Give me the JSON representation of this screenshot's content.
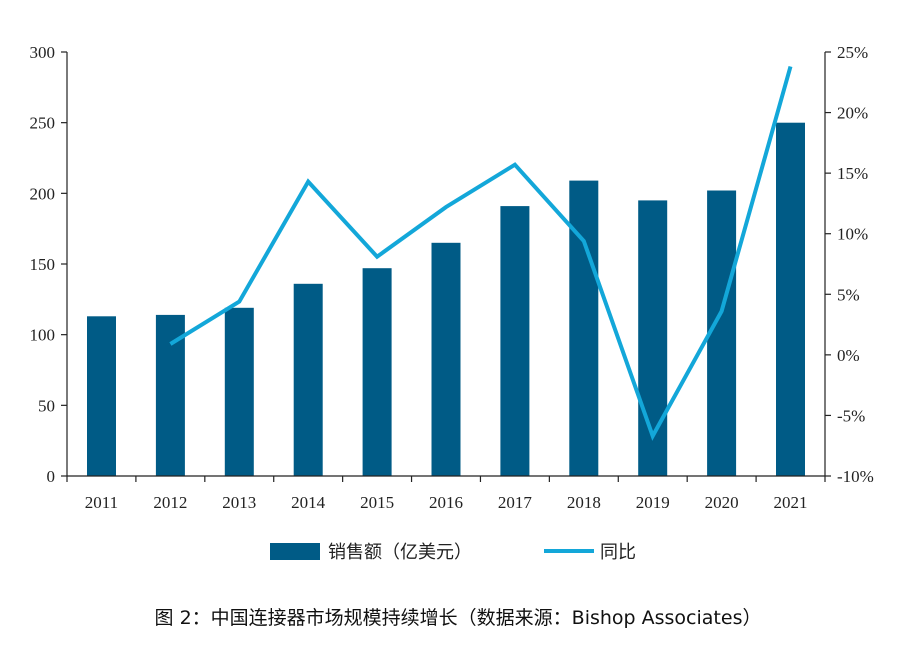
{
  "caption": "图 2：中国连接器市场规模持续增长（数据来源：Bishop Associates）",
  "colors": {
    "bar": "#005b86",
    "line": "#13a7d9",
    "axis": "#222222"
  },
  "chart_data": {
    "type": "bar",
    "categories": [
      "2011",
      "2012",
      "2013",
      "2014",
      "2015",
      "2016",
      "2017",
      "2018",
      "2019",
      "2020",
      "2021"
    ],
    "series": [
      {
        "name": "销售额（亿美元）",
        "type": "bar",
        "axis": "left",
        "values": [
          113,
          114,
          119,
          136,
          147,
          165,
          191,
          209,
          195,
          202,
          250
        ]
      },
      {
        "name": "同比",
        "type": "line",
        "axis": "right",
        "x": [
          "2012",
          "2013",
          "2014",
          "2015",
          "2016",
          "2017",
          "2018",
          "2019",
          "2020",
          "2021"
        ],
        "values": [
          0.9,
          4.4,
          14.3,
          8.1,
          12.2,
          15.7,
          9.4,
          -6.7,
          3.6,
          23.8
        ]
      }
    ],
    "y_left": {
      "lim": [
        0,
        300
      ],
      "ticks": [
        "0",
        "50",
        "100",
        "150",
        "200",
        "250",
        "300"
      ]
    },
    "y_right": {
      "lim": [
        -10,
        25
      ],
      "ticks": [
        "-10%",
        "-5%",
        "0%",
        "5%",
        "10%",
        "15%",
        "20%",
        "25%"
      ]
    },
    "grid": false,
    "legend": "bottom"
  }
}
